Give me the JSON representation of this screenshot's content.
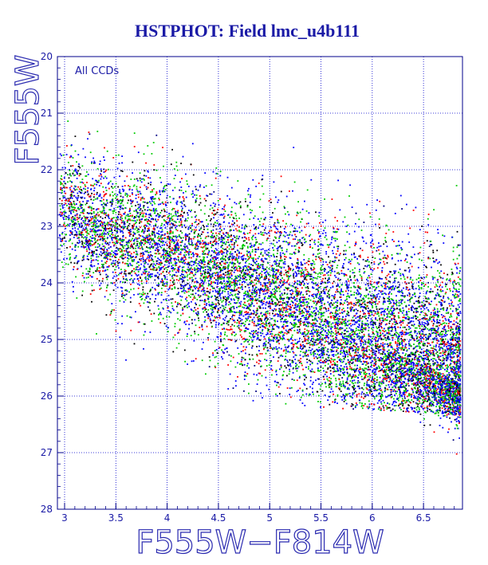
{
  "chart_data": {
    "type": "scatter",
    "title": "HSTPHOT: Field lmc_u4b111",
    "xlabel": "F555W−F814W",
    "ylabel": "F555W",
    "annotation": "All CCDs",
    "xlim": [
      2.93,
      6.88
    ],
    "ylim": [
      20,
      28
    ],
    "y_inverted": true,
    "grid": true,
    "x_ticks": [
      "3",
      "3.5",
      "4",
      "4.5",
      "5",
      "5.5",
      "6",
      "6.5"
    ],
    "y_ticks": [
      "20",
      "21",
      "22",
      "23",
      "24",
      "25",
      "26",
      "27",
      "28"
    ],
    "colors": [
      "#0000ff",
      "#00cc00",
      "#ff0000",
      "#000000",
      "#000080"
    ],
    "ridge": {
      "x": [
        2.95,
        3.5,
        4.0,
        4.5,
        5.0,
        5.5,
        6.0,
        6.5,
        6.88
      ],
      "y": [
        22.7,
        23.1,
        23.4,
        23.85,
        24.25,
        24.65,
        25.05,
        25.45,
        25.8
      ]
    },
    "n_points": 12000,
    "seed": 17
  }
}
